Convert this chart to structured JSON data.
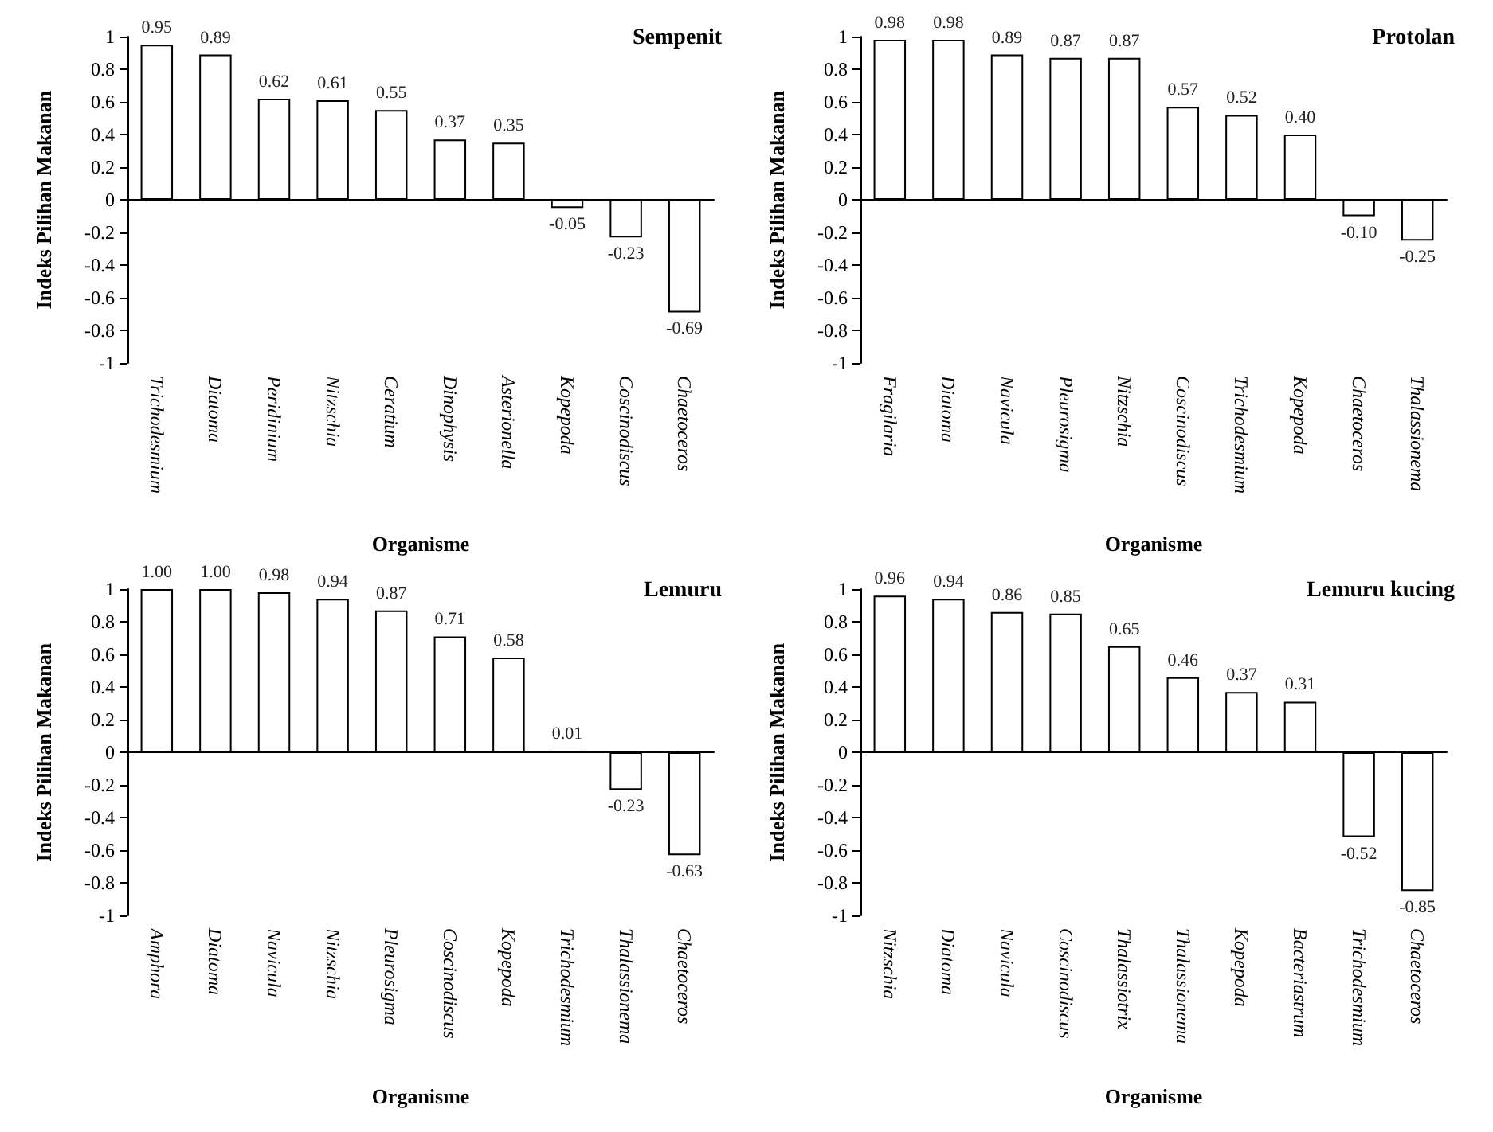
{
  "chart_data": [
    {
      "type": "bar",
      "title": "Sempenit",
      "xlabel": "Organisme",
      "ylabel": "Indeks Pilihan Makanan",
      "categories": [
        "Trichodesmium",
        "Diatoma",
        "Peridinium",
        "Nitzschia",
        "Ceratium",
        "Dinophysis",
        "Asterionella",
        "Kopepoda",
        "Coscinodiscus",
        "Chaetoceros"
      ],
      "values": [
        0.95,
        0.89,
        0.62,
        0.61,
        0.55,
        0.37,
        0.35,
        -0.05,
        -0.23,
        -0.69
      ],
      "value_labels": [
        "0.95",
        "0.89",
        "0.62",
        "0.61",
        "0.55",
        "0.37",
        "0.35",
        "-0.05",
        "-0.23",
        "-0.69"
      ],
      "color": "#ffffff",
      "ylim": [
        -1,
        1
      ],
      "yticks": [
        -1,
        -0.8,
        -0.6,
        -0.4,
        -0.2,
        0,
        0.2,
        0.4,
        0.6,
        0.8,
        1
      ]
    },
    {
      "type": "bar",
      "title": "Protolan",
      "xlabel": "Organisme",
      "ylabel": "Indeks Pilihan Makanan",
      "categories": [
        "Fragilaria",
        "Diatoma",
        "Navicula",
        "Pleurosigma",
        "Nitzschia",
        "Coscinodiscus",
        "Trichodesmium",
        "Kopepoda",
        "Chaetoceros",
        "Thalassionema"
      ],
      "values": [
        0.98,
        0.98,
        0.89,
        0.87,
        0.87,
        0.57,
        0.52,
        0.4,
        -0.1,
        -0.25
      ],
      "value_labels": [
        "0.98",
        "0.98",
        "0.89",
        "0.87",
        "0.87",
        "0.57",
        "0.52",
        "0.40",
        "-0.10",
        "-0.25"
      ],
      "color": "#ffffff",
      "ylim": [
        -1,
        1
      ],
      "yticks": [
        -1,
        -0.8,
        -0.6,
        -0.4,
        -0.2,
        0,
        0.2,
        0.4,
        0.6,
        0.8,
        1
      ]
    },
    {
      "type": "bar",
      "title": "Lemuru",
      "xlabel": "Organisme",
      "ylabel": "Indeks Pilihan Makanan",
      "categories": [
        "Amphora",
        "Diatoma",
        "Navicula",
        "Nitzschia",
        "Pleurosigma",
        "Coscinodiscus",
        "Kopepoda",
        "Trichodesmium",
        "Thalassionema",
        "Chaetoceros"
      ],
      "values": [
        1.0,
        1.0,
        0.98,
        0.94,
        0.87,
        0.71,
        0.58,
        0.01,
        -0.23,
        -0.63
      ],
      "value_labels": [
        "1.00",
        "1.00",
        "0.98",
        "0.94",
        "0.87",
        "0.71",
        "0.58",
        "0.01",
        "-0.23",
        "-0.63"
      ],
      "color": "#ffffff",
      "ylim": [
        -1,
        1
      ],
      "yticks": [
        -1,
        -0.8,
        -0.6,
        -0.4,
        -0.2,
        0,
        0.2,
        0.4,
        0.6,
        0.8,
        1
      ]
    },
    {
      "type": "bar",
      "title": "Lemuru kucing",
      "xlabel": "Organisme",
      "ylabel": "Indeks Pilihan Makanan",
      "categories": [
        "Nitzschia",
        "Diatoma",
        "Navicula",
        "Coscinodiscus",
        "Thalassiotrix",
        "Thalassionema",
        "Kopepoda",
        "Bacteriastrum",
        "Trichodesmium",
        "Chaetoceros"
      ],
      "values": [
        0.96,
        0.94,
        0.86,
        0.85,
        0.65,
        0.46,
        0.37,
        0.31,
        -0.52,
        -0.85
      ],
      "value_labels": [
        "0.96",
        "0.94",
        "0.86",
        "0.85",
        "0.65",
        "0.46",
        "0.37",
        "0.31",
        "-0.52",
        "-0.85"
      ],
      "color": "#ffffff",
      "ylim": [
        -1,
        1
      ],
      "yticks": [
        -1,
        -0.8,
        -0.6,
        -0.4,
        -0.2,
        0,
        0.2,
        0.4,
        0.6,
        0.8,
        1
      ]
    }
  ]
}
